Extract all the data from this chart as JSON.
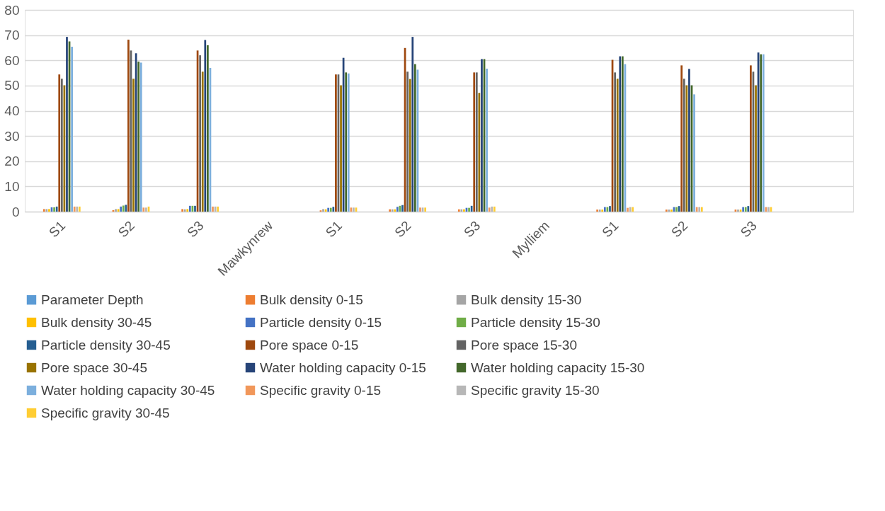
{
  "chart_data": {
    "type": "bar",
    "categories": [
      "S1",
      "S2",
      "S3",
      "Mawkynrew",
      "S1",
      "S2",
      "S3",
      "Mylliem",
      "S1",
      "S2",
      "S3",
      null
    ],
    "ylim": [
      0,
      80
    ],
    "yticks": [
      0,
      10,
      20,
      30,
      40,
      50,
      60,
      70,
      80
    ],
    "grid": "y",
    "legend": "bottom",
    "series": [
      {
        "name": "Parameter Depth",
        "color": "#5b9bd5",
        "values": [
          null,
          null,
          null,
          null,
          null,
          null,
          null,
          null,
          null,
          null,
          null,
          null
        ]
      },
      {
        "name": "Bulk density 0-15",
        "color": "#ed7d31",
        "values": [
          1.0,
          0.6,
          1.0,
          null,
          0.5,
          0.9,
          0.9,
          null,
          0.8,
          0.8,
          0.8,
          null
        ]
      },
      {
        "name": "Bulk density 15-30",
        "color": "#a5a5a5",
        "values": [
          1.0,
          1.0,
          0.9,
          null,
          1.0,
          0.9,
          0.9,
          null,
          0.8,
          0.8,
          0.8,
          null
        ]
      },
      {
        "name": "Bulk density 30-45",
        "color": "#ffc000",
        "values": [
          1.0,
          1.0,
          1.0,
          null,
          0.9,
          0.9,
          0.9,
          null,
          0.8,
          0.8,
          0.8,
          null
        ]
      },
      {
        "name": "Particle density 0-15",
        "color": "#4472c4",
        "values": [
          1.7,
          2.0,
          2.3,
          null,
          1.5,
          1.9,
          1.5,
          null,
          1.8,
          1.8,
          1.8,
          null
        ]
      },
      {
        "name": "Particle density 15-30",
        "color": "#70ad47",
        "values": [
          1.7,
          2.4,
          2.3,
          null,
          1.5,
          2.3,
          1.5,
          null,
          1.8,
          1.8,
          1.8,
          null
        ]
      },
      {
        "name": "Particle density 30-45",
        "color": "#255e91",
        "values": [
          2.0,
          2.7,
          2.3,
          null,
          1.9,
          2.6,
          2.3,
          null,
          2.2,
          2.2,
          2.2,
          null
        ]
      },
      {
        "name": "Pore space 0-15",
        "color": "#9e480e",
        "values": [
          54.4,
          68.2,
          63.9,
          null,
          54.4,
          64.9,
          55.2,
          null,
          60.2,
          58.0,
          58.0,
          null
        ]
      },
      {
        "name": "Pore space 15-30",
        "color": "#636363",
        "values": [
          52.7,
          63.9,
          62.0,
          null,
          54.4,
          55.5,
          55.2,
          null,
          55.2,
          52.7,
          55.5,
          null
        ]
      },
      {
        "name": "Pore space 30-45",
        "color": "#997300",
        "values": [
          50.1,
          52.7,
          55.5,
          null,
          50.1,
          52.6,
          47.1,
          null,
          52.7,
          50.1,
          50.1,
          null
        ]
      },
      {
        "name": "Water holding capacity 0-15",
        "color": "#264478",
        "values": [
          69.3,
          62.8,
          68.1,
          null,
          61.0,
          69.3,
          60.5,
          null,
          61.6,
          56.6,
          63.1,
          null
        ]
      },
      {
        "name": "Water holding capacity 15-30",
        "color": "#43682b",
        "values": [
          67.5,
          59.5,
          66.0,
          null,
          55.2,
          58.5,
          60.5,
          null,
          61.6,
          50.1,
          62.4,
          null
        ]
      },
      {
        "name": "Water holding capacity 30-45",
        "color": "#7cafdd",
        "values": [
          65.4,
          59.1,
          57.0,
          null,
          54.8,
          56.3,
          56.7,
          null,
          58.5,
          46.5,
          62.4,
          null
        ]
      },
      {
        "name": "Specific gravity 0-15",
        "color": "#f1975a",
        "values": [
          2.0,
          1.6,
          2.0,
          null,
          1.6,
          1.6,
          1.6,
          null,
          1.5,
          1.8,
          1.8,
          null
        ]
      },
      {
        "name": "Specific gravity 15-30",
        "color": "#b7b7b7",
        "values": [
          2.0,
          1.6,
          2.0,
          null,
          1.6,
          1.6,
          2.0,
          null,
          1.8,
          1.8,
          1.8,
          null
        ]
      },
      {
        "name": "Specific gravity 30-45",
        "color": "#ffcd33",
        "values": [
          2.0,
          2.0,
          2.0,
          null,
          1.6,
          1.6,
          2.0,
          null,
          1.8,
          1.8,
          1.8,
          null
        ]
      }
    ]
  }
}
